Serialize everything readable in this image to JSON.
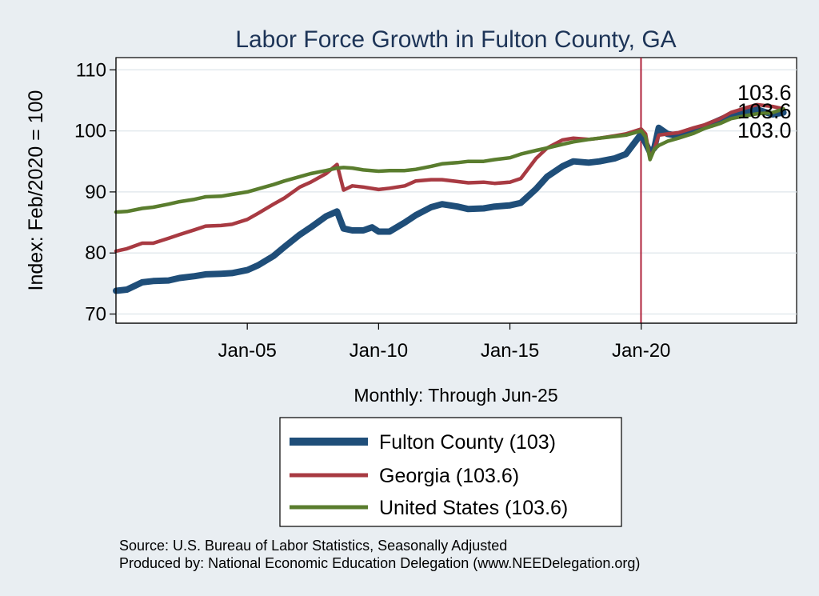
{
  "chart_data": {
    "type": "line",
    "title": "Labor Force Growth in Fulton  County, GA",
    "ylabel": "Index: Feb/2020 = 100",
    "xlabel": "Monthly: Through Jun-25",
    "x_range": [
      "2000-01",
      "2025-06"
    ],
    "x_ticks": [
      {
        "date": "2005-01",
        "label": "Jan-05"
      },
      {
        "date": "2010-01",
        "label": "Jan-10"
      },
      {
        "date": "2015-01",
        "label": "Jan-15"
      },
      {
        "date": "2020-01",
        "label": "Jan-20"
      }
    ],
    "y_ticks": [
      70,
      80,
      90,
      100,
      110
    ],
    "ylim": [
      68.5,
      112
    ],
    "grid": "horizontal",
    "reference_line": {
      "date": "2020-02",
      "color": "#b0243d"
    },
    "end_labels": [
      "103.6",
      "103.6",
      "103.0"
    ],
    "series": [
      {
        "name": "Fulton  County (103)",
        "color": "#1f4e79",
        "points": [
          [
            "2000-01",
            73.8
          ],
          [
            "2000-06",
            74.0
          ],
          [
            "2001-01",
            75.2
          ],
          [
            "2001-06",
            75.4
          ],
          [
            "2002-01",
            75.5
          ],
          [
            "2002-06",
            75.9
          ],
          [
            "2003-01",
            76.2
          ],
          [
            "2003-06",
            76.5
          ],
          [
            "2004-01",
            76.6
          ],
          [
            "2004-06",
            76.7
          ],
          [
            "2005-01",
            77.2
          ],
          [
            "2005-06",
            78.0
          ],
          [
            "2006-01",
            79.5
          ],
          [
            "2006-06",
            81.0
          ],
          [
            "2007-01",
            83.0
          ],
          [
            "2007-06",
            84.2
          ],
          [
            "2008-01",
            86.0
          ],
          [
            "2008-06",
            86.8
          ],
          [
            "2008-09",
            84.0
          ],
          [
            "2009-01",
            83.7
          ],
          [
            "2009-06",
            83.7
          ],
          [
            "2009-10",
            84.2
          ],
          [
            "2010-01",
            83.5
          ],
          [
            "2010-06",
            83.5
          ],
          [
            "2011-01",
            85.0
          ],
          [
            "2011-06",
            86.2
          ],
          [
            "2012-01",
            87.5
          ],
          [
            "2012-06",
            88.0
          ],
          [
            "2013-01",
            87.6
          ],
          [
            "2013-06",
            87.2
          ],
          [
            "2014-01",
            87.3
          ],
          [
            "2014-06",
            87.6
          ],
          [
            "2015-01",
            87.8
          ],
          [
            "2015-06",
            88.2
          ],
          [
            "2016-01",
            90.5
          ],
          [
            "2016-06",
            92.5
          ],
          [
            "2017-01",
            94.2
          ],
          [
            "2017-06",
            95.0
          ],
          [
            "2018-01",
            94.8
          ],
          [
            "2018-06",
            95.0
          ],
          [
            "2019-01",
            95.5
          ],
          [
            "2019-06",
            96.2
          ],
          [
            "2020-01",
            99.5
          ],
          [
            "2020-03",
            98.0
          ],
          [
            "2020-05",
            96.5
          ],
          [
            "2020-07",
            97.2
          ],
          [
            "2020-09",
            100.5
          ],
          [
            "2021-01",
            99.5
          ],
          [
            "2021-06",
            99.2
          ],
          [
            "2022-01",
            100.0
          ],
          [
            "2022-06",
            100.7
          ],
          [
            "2023-01",
            101.8
          ],
          [
            "2023-06",
            102.6
          ],
          [
            "2024-01",
            103.2
          ],
          [
            "2024-06",
            103.5
          ],
          [
            "2025-01",
            102.7
          ],
          [
            "2025-06",
            103.0
          ]
        ]
      },
      {
        "name": "Georgia (103.6)",
        "color": "#a83a42",
        "points": [
          [
            "2000-01",
            80.3
          ],
          [
            "2000-06",
            80.7
          ],
          [
            "2001-01",
            81.6
          ],
          [
            "2001-06",
            81.6
          ],
          [
            "2002-01",
            82.4
          ],
          [
            "2002-06",
            83.0
          ],
          [
            "2003-01",
            83.8
          ],
          [
            "2003-06",
            84.4
          ],
          [
            "2004-01",
            84.5
          ],
          [
            "2004-06",
            84.7
          ],
          [
            "2005-01",
            85.5
          ],
          [
            "2005-06",
            86.5
          ],
          [
            "2006-01",
            88.0
          ],
          [
            "2006-06",
            89.0
          ],
          [
            "2007-01",
            90.8
          ],
          [
            "2007-06",
            91.6
          ],
          [
            "2008-01",
            93.0
          ],
          [
            "2008-06",
            94.5
          ],
          [
            "2008-09",
            90.3
          ],
          [
            "2009-01",
            91.0
          ],
          [
            "2009-06",
            90.8
          ],
          [
            "2010-01",
            90.4
          ],
          [
            "2010-06",
            90.6
          ],
          [
            "2011-01",
            91.0
          ],
          [
            "2011-06",
            91.8
          ],
          [
            "2012-01",
            92.0
          ],
          [
            "2012-06",
            92.0
          ],
          [
            "2013-01",
            91.7
          ],
          [
            "2013-06",
            91.5
          ],
          [
            "2014-01",
            91.6
          ],
          [
            "2014-06",
            91.4
          ],
          [
            "2015-01",
            91.6
          ],
          [
            "2015-06",
            92.2
          ],
          [
            "2016-01",
            95.5
          ],
          [
            "2016-06",
            97.2
          ],
          [
            "2017-01",
            98.5
          ],
          [
            "2017-06",
            98.8
          ],
          [
            "2018-01",
            98.6
          ],
          [
            "2018-06",
            98.8
          ],
          [
            "2019-01",
            99.2
          ],
          [
            "2019-06",
            99.5
          ],
          [
            "2020-01",
            100.3
          ],
          [
            "2020-03",
            99.5
          ],
          [
            "2020-05",
            95.5
          ],
          [
            "2020-07",
            97.0
          ],
          [
            "2020-09",
            99.3
          ],
          [
            "2021-01",
            99.5
          ],
          [
            "2021-06",
            99.7
          ],
          [
            "2022-01",
            100.5
          ],
          [
            "2022-06",
            101.0
          ],
          [
            "2023-01",
            102.0
          ],
          [
            "2023-06",
            103.0
          ],
          [
            "2024-01",
            103.8
          ],
          [
            "2024-06",
            104.3
          ],
          [
            "2025-01",
            104.0
          ],
          [
            "2025-06",
            103.6
          ]
        ]
      },
      {
        "name": "United States (103.6)",
        "color": "#5a7d2e",
        "points": [
          [
            "2000-01",
            86.7
          ],
          [
            "2000-06",
            86.8
          ],
          [
            "2001-01",
            87.3
          ],
          [
            "2001-06",
            87.5
          ],
          [
            "2002-01",
            88.0
          ],
          [
            "2002-06",
            88.4
          ],
          [
            "2003-01",
            88.8
          ],
          [
            "2003-06",
            89.2
          ],
          [
            "2004-01",
            89.3
          ],
          [
            "2004-06",
            89.6
          ],
          [
            "2005-01",
            90.0
          ],
          [
            "2005-06",
            90.5
          ],
          [
            "2006-01",
            91.2
          ],
          [
            "2006-06",
            91.8
          ],
          [
            "2007-01",
            92.5
          ],
          [
            "2007-06",
            93.0
          ],
          [
            "2008-01",
            93.5
          ],
          [
            "2008-06",
            93.9
          ],
          [
            "2008-09",
            94.0
          ],
          [
            "2009-01",
            93.9
          ],
          [
            "2009-06",
            93.6
          ],
          [
            "2010-01",
            93.4
          ],
          [
            "2010-06",
            93.5
          ],
          [
            "2011-01",
            93.5
          ],
          [
            "2011-06",
            93.7
          ],
          [
            "2012-01",
            94.2
          ],
          [
            "2012-06",
            94.6
          ],
          [
            "2013-01",
            94.8
          ],
          [
            "2013-06",
            95.0
          ],
          [
            "2014-01",
            95.0
          ],
          [
            "2014-06",
            95.3
          ],
          [
            "2015-01",
            95.6
          ],
          [
            "2015-06",
            96.2
          ],
          [
            "2016-01",
            96.8
          ],
          [
            "2016-06",
            97.2
          ],
          [
            "2017-01",
            97.8
          ],
          [
            "2017-06",
            98.2
          ],
          [
            "2018-01",
            98.6
          ],
          [
            "2018-06",
            98.8
          ],
          [
            "2019-01",
            99.1
          ],
          [
            "2019-06",
            99.3
          ],
          [
            "2020-01",
            100.0
          ],
          [
            "2020-03",
            99.0
          ],
          [
            "2020-05",
            95.3
          ],
          [
            "2020-07",
            97.0
          ],
          [
            "2020-09",
            97.6
          ],
          [
            "2021-01",
            98.3
          ],
          [
            "2021-06",
            98.8
          ],
          [
            "2022-01",
            99.6
          ],
          [
            "2022-06",
            100.4
          ],
          [
            "2023-01",
            101.2
          ],
          [
            "2023-06",
            102.0
          ],
          [
            "2024-01",
            102.5
          ],
          [
            "2024-06",
            102.8
          ],
          [
            "2025-01",
            103.0
          ],
          [
            "2025-06",
            103.6
          ]
        ]
      }
    ]
  },
  "footer": {
    "source": "Source: U.S. Bureau of Labor Statistics, Seasonally Adjusted",
    "produced": "Produced by: National Economic Education Delegation (www.NEEDelegation.org)"
  }
}
